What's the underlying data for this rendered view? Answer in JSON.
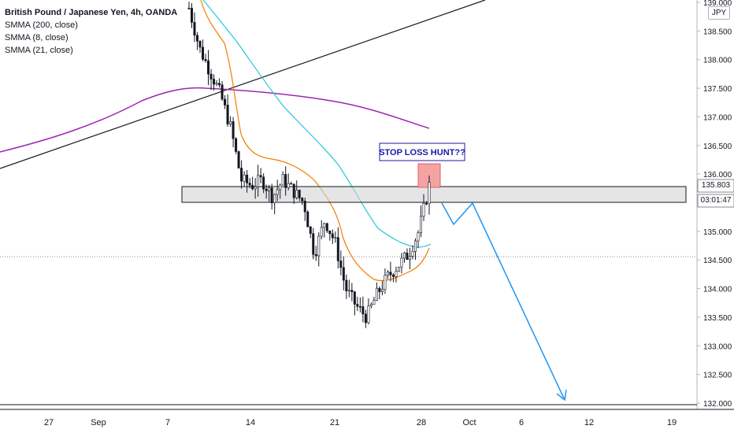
{
  "legend": {
    "symbol": "British Pound / Japanese Yen, 4h, OANDA",
    "indicators": [
      "SMMA (200, close)",
      "SMMA (8, close)",
      "SMMA (21, close)"
    ]
  },
  "currency_label": "JPY",
  "last_price_label": "135.803",
  "countdown_label": "03:01:47",
  "annotation_label": "STOP LOSS HUNT??",
  "colors": {
    "smma200": "#9c27b0",
    "smma8": "#f57c00",
    "smma21": "#26c6da",
    "projection": "#2196f3",
    "support_zone": "#d3d3d3",
    "stop_box": "#f4a3a3",
    "annotation_text": "#1a1aa6"
  },
  "chart_data": {
    "type": "candlestick",
    "y_ticks": [
      "139.000",
      "138.500",
      "138.000",
      "137.500",
      "137.000",
      "136.500",
      "136.000",
      "135.500",
      "135.000",
      "134.500",
      "134.000",
      "133.500",
      "133.000",
      "132.500",
      "132.000"
    ],
    "ylim": [
      131.9,
      139.1
    ],
    "x_ticks": [
      "27",
      "Sep",
      "7",
      "14",
      "21",
      "28",
      "Oct",
      "6",
      "12",
      "19"
    ],
    "close_path": [
      138.9,
      138.2,
      137.8,
      137.4,
      136.8,
      135.9,
      135.8,
      135.9,
      135.6,
      135.9,
      135.7,
      135.5,
      134.6,
      135.2,
      134.8,
      134.0,
      133.7,
      133.5,
      133.9,
      134.2,
      134.4,
      134.6,
      135.0,
      135.8
    ],
    "smma200": [
      136.75,
      137.0,
      137.3,
      137.55,
      137.6,
      137.55,
      137.4,
      137.2,
      137.0,
      136.8
    ],
    "projection_path": [
      135.8,
      135.3,
      135.6,
      132.0
    ],
    "support_zone": [
      135.5,
      135.75
    ],
    "trendline": [
      136.2,
      139.1
    ]
  }
}
